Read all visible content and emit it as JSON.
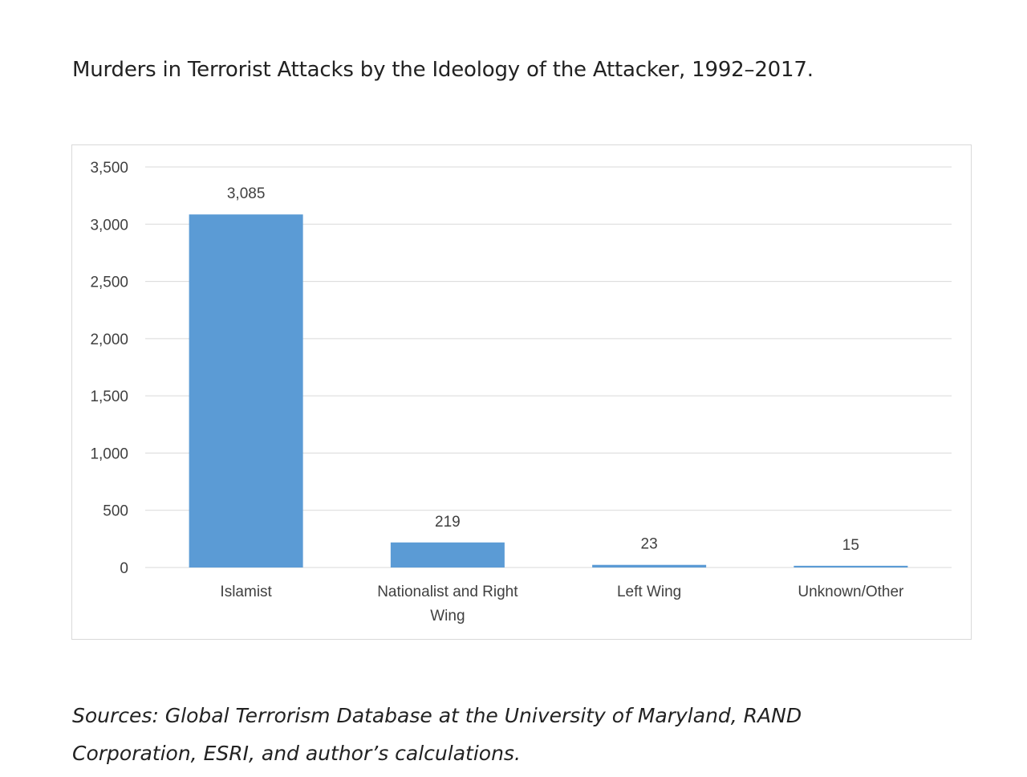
{
  "title": "Murders in Terrorist Attacks by the Ideology of the Attacker, 1992–2017.",
  "sources": "Sources: Global Terrorism Database at the University of Maryland, RAND Corporation, ESRI, and author’s calculations.",
  "chart_data": {
    "type": "bar",
    "categories": [
      "Islamist",
      "Nationalist and Right Wing",
      "Left Wing",
      "Unknown/Other"
    ],
    "category_lines": [
      [
        "Islamist"
      ],
      [
        "Nationalist and Right",
        "Wing"
      ],
      [
        "Left Wing"
      ],
      [
        "Unknown/Other"
      ]
    ],
    "values": [
      3085,
      219,
      23,
      15
    ],
    "data_labels": [
      "3,085",
      "219",
      "23",
      "15"
    ],
    "ylim": [
      0,
      3500
    ],
    "yticks": [
      0,
      500,
      1000,
      1500,
      2000,
      2500,
      3000,
      3500
    ],
    "ytick_labels": [
      "0",
      "500",
      "1,000",
      "1,500",
      "2,000",
      "2,500",
      "3,000",
      "3,500"
    ],
    "grid": true,
    "bar_color": "#5b9bd5",
    "xlabel": "",
    "ylabel": ""
  }
}
